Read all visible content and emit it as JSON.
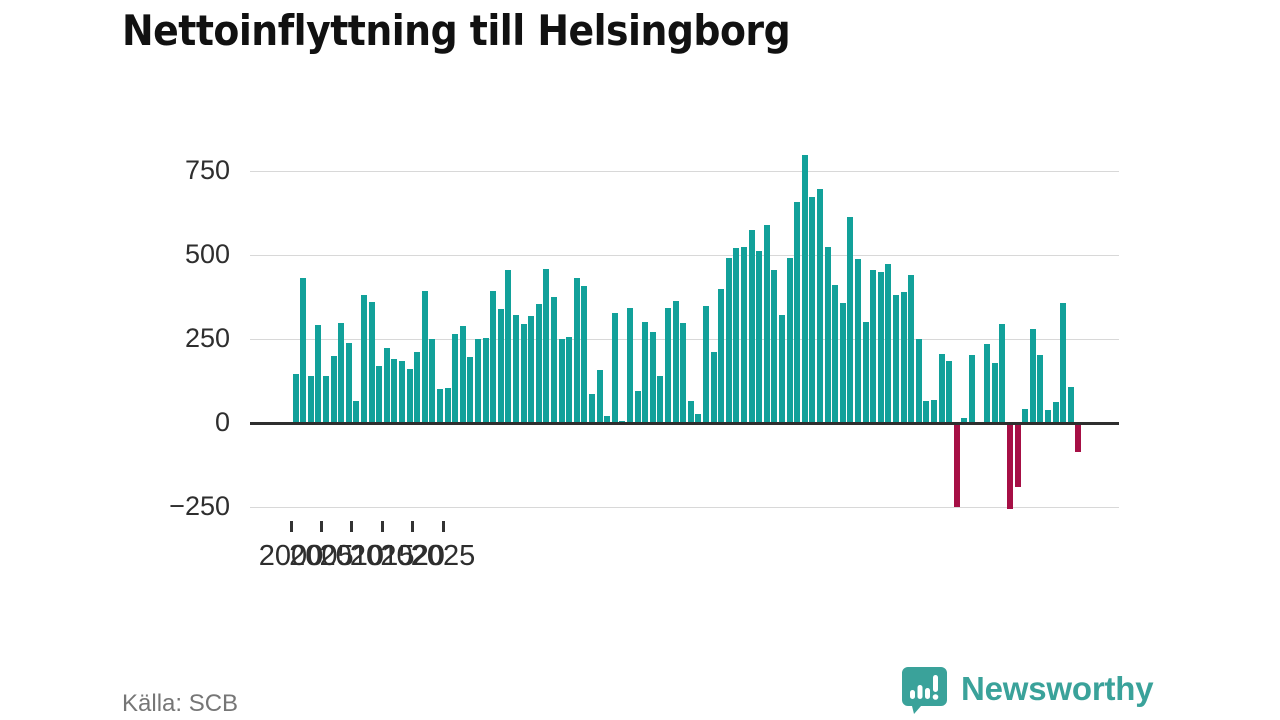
{
  "title": "Nettoinflyttning till Helsingborg",
  "source": "Källa: SCB",
  "brand": {
    "name": "Newsworthy",
    "logo_icon": "speech-bubble-bar-chart-icon",
    "color": "#3aa29a"
  },
  "chart_data": {
    "type": "bar",
    "title": "Nettoinflyttning till Helsingborg",
    "frequency": "quarterly",
    "start_period": "2000 Q1",
    "end_period": "2025 Q4",
    "x_tick_labels": [
      "2000",
      "2005",
      "2010",
      "2015",
      "2020",
      "2025"
    ],
    "y_ticks": [
      750,
      500,
      250,
      0,
      -250
    ],
    "y_tick_labels": [
      "750",
      "500",
      "250",
      "0",
      "−250"
    ],
    "ylim": [
      -290,
      845
    ],
    "grid": true,
    "positive_color": "#12a19a",
    "negative_color": "#a60f45",
    "series": [
      {
        "name": "Nettoinflyttning",
        "values": [
          145,
          433,
          140,
          291,
          139,
          200,
          297,
          238,
          66,
          382,
          360,
          170,
          222,
          190,
          186,
          162,
          211,
          394,
          251,
          100,
          105,
          265,
          288,
          195,
          250,
          252,
          392,
          339,
          456,
          322,
          295,
          317,
          354,
          459,
          374,
          250,
          255,
          431,
          409,
          87,
          159,
          20,
          326,
          5,
          342,
          94,
          302,
          270,
          139,
          342,
          362,
          298,
          64,
          27,
          348,
          210,
          398,
          490,
          521,
          525,
          575,
          513,
          590,
          455,
          320,
          490,
          657,
          798,
          673,
          696,
          525,
          410,
          357,
          613,
          488,
          300,
          456,
          449,
          472,
          381,
          389,
          439,
          250,
          65,
          67,
          204,
          186,
          -245,
          14,
          202,
          2,
          235,
          179,
          294,
          -250,
          -187,
          43,
          280,
          201,
          38,
          63,
          357,
          108,
          -83
        ]
      }
    ]
  }
}
